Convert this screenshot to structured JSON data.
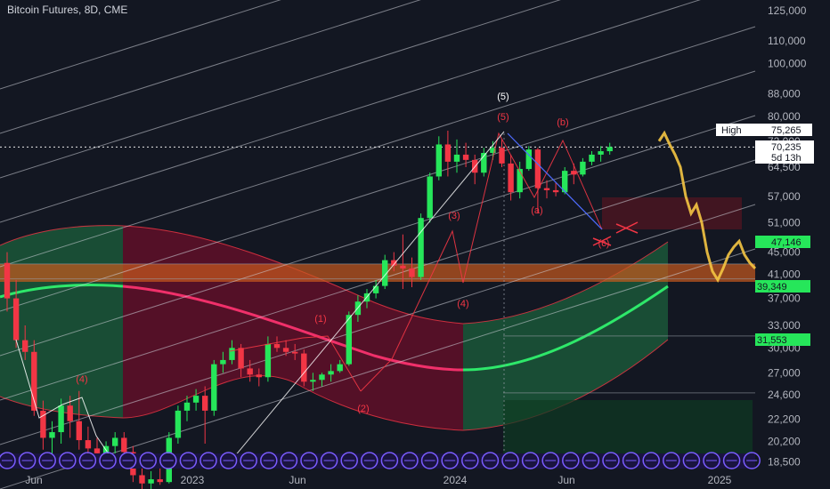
{
  "symbol_title": "Bitcoin Futures, 8D, CME",
  "colors": {
    "background": "#131722",
    "bull": "#26e65a",
    "bear": "#f23645",
    "projection": "#f5c542",
    "wave_label": "#f23645",
    "band_green": "#1f7a45",
    "band_red": "#6b0f2a",
    "orange_zone": "#c85a1e",
    "cycle": "#7a5cff"
  },
  "chart_data": {
    "type": "candlestick",
    "title": "Bitcoin Futures, 8D, CME",
    "y_scale": "log",
    "ylim": [
      18000,
      127000
    ],
    "y_ticks": [
      125000,
      110000,
      100000,
      88000,
      80000,
      72000,
      64500,
      57000,
      51000,
      45000,
      41000,
      37000,
      33000,
      30000,
      27000,
      24600,
      22200,
      20200,
      18500
    ],
    "x_ticks": [
      "Jun",
      "2023",
      "Jun",
      "2024",
      "Jun",
      "2025"
    ],
    "price_badges": [
      {
        "label": "High",
        "value": "75,265"
      },
      {
        "value": "70,235",
        "countdown": "5d 13h"
      },
      {
        "value": "47,146"
      },
      {
        "value": "39,349"
      },
      {
        "value": "31,553"
      }
    ],
    "wave_labels": [
      "(4)",
      "(1)",
      "(2)",
      "(3)",
      "(4)",
      "(5)",
      "(5)",
      "(a)",
      "(b)",
      "(c)"
    ],
    "candles": [
      {
        "o": 43000,
        "h": 45000,
        "l": 35000,
        "c": 37000
      },
      {
        "o": 37000,
        "h": 40000,
        "l": 30000,
        "c": 31000
      },
      {
        "o": 31000,
        "h": 33000,
        "l": 28500,
        "c": 29500
      },
      {
        "o": 29500,
        "h": 31000,
        "l": 22500,
        "c": 23000
      },
      {
        "o": 23000,
        "h": 24000,
        "l": 19500,
        "c": 20500
      },
      {
        "o": 20500,
        "h": 22000,
        "l": 19000,
        "c": 21000
      },
      {
        "o": 21000,
        "h": 24200,
        "l": 20000,
        "c": 23500
      },
      {
        "o": 23500,
        "h": 24500,
        "l": 20500,
        "c": 22000
      },
      {
        "o": 22000,
        "h": 25000,
        "l": 19500,
        "c": 20300
      },
      {
        "o": 20300,
        "h": 21500,
        "l": 18800,
        "c": 19600
      },
      {
        "o": 19600,
        "h": 20500,
        "l": 18600,
        "c": 19200
      },
      {
        "o": 19200,
        "h": 20200,
        "l": 18500,
        "c": 19800
      },
      {
        "o": 19800,
        "h": 21000,
        "l": 19200,
        "c": 20500
      },
      {
        "o": 20500,
        "h": 21000,
        "l": 18800,
        "c": 19300
      },
      {
        "o": 19300,
        "h": 19800,
        "l": 17000,
        "c": 17500
      },
      {
        "o": 17500,
        "h": 18000,
        "l": 16500,
        "c": 16900
      },
      {
        "o": 16900,
        "h": 17800,
        "l": 16400,
        "c": 17200
      },
      {
        "o": 17200,
        "h": 18500,
        "l": 16800,
        "c": 17000
      },
      {
        "o": 17000,
        "h": 21000,
        "l": 16900,
        "c": 20500
      },
      {
        "o": 20500,
        "h": 23500,
        "l": 20000,
        "c": 23000
      },
      {
        "o": 23000,
        "h": 24500,
        "l": 22000,
        "c": 23800
      },
      {
        "o": 23800,
        "h": 25200,
        "l": 23000,
        "c": 24500
      },
      {
        "o": 24500,
        "h": 25500,
        "l": 20000,
        "c": 23000
      },
      {
        "o": 23000,
        "h": 28500,
        "l": 22500,
        "c": 28000
      },
      {
        "o": 28000,
        "h": 29500,
        "l": 27000,
        "c": 28500
      },
      {
        "o": 28500,
        "h": 31000,
        "l": 28000,
        "c": 30000
      },
      {
        "o": 30000,
        "h": 30500,
        "l": 26500,
        "c": 27500
      },
      {
        "o": 27500,
        "h": 28500,
        "l": 26000,
        "c": 26800
      },
      {
        "o": 26800,
        "h": 27500,
        "l": 25500,
        "c": 26500
      },
      {
        "o": 26500,
        "h": 31500,
        "l": 26000,
        "c": 30500
      },
      {
        "o": 30500,
        "h": 31500,
        "l": 29500,
        "c": 30000
      },
      {
        "o": 30000,
        "h": 31000,
        "l": 29000,
        "c": 29500
      },
      {
        "o": 29500,
        "h": 30500,
        "l": 28500,
        "c": 29300
      },
      {
        "o": 29300,
        "h": 29800,
        "l": 25500,
        "c": 26000
      },
      {
        "o": 26000,
        "h": 27000,
        "l": 25000,
        "c": 26200
      },
      {
        "o": 26200,
        "h": 27000,
        "l": 25500,
        "c": 26800
      },
      {
        "o": 26800,
        "h": 28000,
        "l": 26000,
        "c": 27200
      },
      {
        "o": 27200,
        "h": 28500,
        "l": 27000,
        "c": 28000
      },
      {
        "o": 28000,
        "h": 35000,
        "l": 27800,
        "c": 34500
      },
      {
        "o": 34500,
        "h": 37500,
        "l": 33500,
        "c": 36500
      },
      {
        "o": 36500,
        "h": 38500,
        "l": 35500,
        "c": 37800
      },
      {
        "o": 37800,
        "h": 40000,
        "l": 37000,
        "c": 39000
      },
      {
        "o": 39000,
        "h": 44500,
        "l": 38500,
        "c": 43500
      },
      {
        "o": 43500,
        "h": 45000,
        "l": 41500,
        "c": 42500
      },
      {
        "o": 42500,
        "h": 48500,
        "l": 38500,
        "c": 42000
      },
      {
        "o": 42000,
        "h": 44000,
        "l": 38800,
        "c": 40500
      },
      {
        "o": 40500,
        "h": 53000,
        "l": 40000,
        "c": 52000
      },
      {
        "o": 52000,
        "h": 63000,
        "l": 51000,
        "c": 62000
      },
      {
        "o": 62000,
        "h": 73500,
        "l": 61000,
        "c": 71000
      },
      {
        "o": 71000,
        "h": 75265,
        "l": 62000,
        "c": 66000
      },
      {
        "o": 66000,
        "h": 72500,
        "l": 63000,
        "c": 68000
      },
      {
        "o": 68000,
        "h": 71500,
        "l": 64500,
        "c": 66500
      },
      {
        "o": 66500,
        "h": 68000,
        "l": 60000,
        "c": 63000
      },
      {
        "o": 63000,
        "h": 70000,
        "l": 62000,
        "c": 68500
      },
      {
        "o": 68500,
        "h": 72000,
        "l": 66500,
        "c": 70000
      },
      {
        "o": 70000,
        "h": 72500,
        "l": 64500,
        "c": 65500
      },
      {
        "o": 65500,
        "h": 68000,
        "l": 56000,
        "c": 58000
      },
      {
        "o": 58000,
        "h": 66000,
        "l": 56500,
        "c": 64000
      },
      {
        "o": 64000,
        "h": 70500,
        "l": 63500,
        "c": 69500
      },
      {
        "o": 69500,
        "h": 70000,
        "l": 53000,
        "c": 59000
      },
      {
        "o": 59000,
        "h": 61000,
        "l": 56500,
        "c": 58500
      },
      {
        "o": 58500,
        "h": 60500,
        "l": 57000,
        "c": 58000
      },
      {
        "o": 58000,
        "h": 64500,
        "l": 57500,
        "c": 63500
      },
      {
        "o": 63500,
        "h": 65500,
        "l": 60000,
        "c": 62500
      },
      {
        "o": 62500,
        "h": 67000,
        "l": 62000,
        "c": 66000
      },
      {
        "o": 66000,
        "h": 69000,
        "l": 65000,
        "c": 68000
      },
      {
        "o": 68000,
        "h": 70500,
        "l": 66000,
        "c": 69000
      },
      {
        "o": 69000,
        "h": 71500,
        "l": 68000,
        "c": 70235
      }
    ],
    "projection_path": [
      72000,
      74500,
      71000,
      68000,
      64500,
      57000,
      53000,
      55000,
      51000,
      45000,
      41500,
      40000,
      42000,
      44500,
      46000,
      47146,
      44500,
      43000,
      42000
    ],
    "horizontal_levels": [
      {
        "value": 70235,
        "style": "dotted"
      },
      {
        "value": 42800,
        "style": "zone_top"
      },
      {
        "value": 40200,
        "style": "zone_bottom"
      },
      {
        "value": 31553,
        "style": "line"
      },
      {
        "value": 24800,
        "style": "line"
      }
    ]
  }
}
